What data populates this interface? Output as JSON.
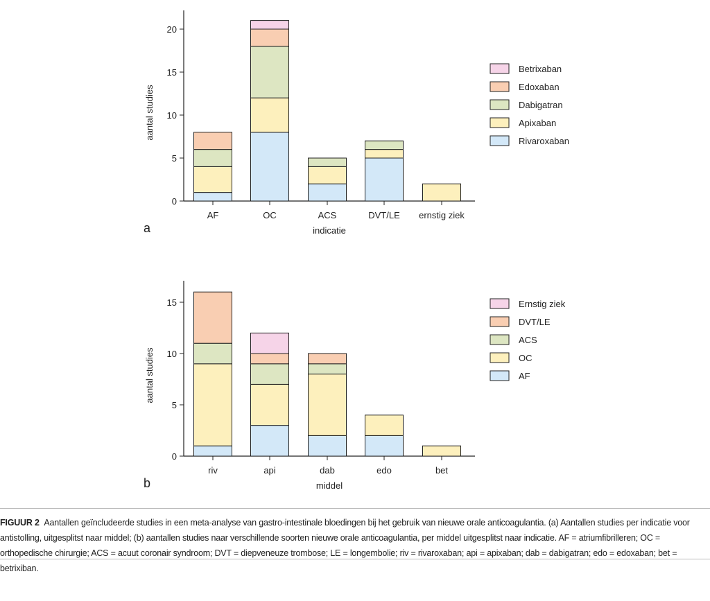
{
  "chart_data": [
    {
      "type": "bar",
      "stacked": true,
      "panel_label": "a",
      "categories": [
        "AF",
        "OC",
        "ACS",
        "DVT/LE",
        "ernstig ziek"
      ],
      "series": [
        {
          "name": "Rivaroxaban",
          "color": "#d3e8f8",
          "values": [
            1,
            8,
            2,
            5,
            0
          ]
        },
        {
          "name": "Apixaban",
          "color": "#fdf0bd",
          "values": [
            3,
            4,
            2,
            1,
            2
          ]
        },
        {
          "name": "Dabigatran",
          "color": "#dde6c2",
          "values": [
            2,
            6,
            1,
            1,
            0
          ]
        },
        {
          "name": "Edoxaban",
          "color": "#f9ceb2",
          "values": [
            2,
            2,
            0,
            0,
            0
          ]
        },
        {
          "name": "Betrixaban",
          "color": "#f6d4e8",
          "values": [
            0,
            1,
            0,
            0,
            0
          ]
        }
      ],
      "xlabel": "indicatie",
      "ylabel": "aantal studies",
      "ylim": [
        0,
        22
      ],
      "yticks": [
        0,
        5,
        10,
        15,
        20
      ],
      "legend": "right"
    },
    {
      "type": "bar",
      "stacked": true,
      "panel_label": "b",
      "categories": [
        "riv",
        "api",
        "dab",
        "edo",
        "bet"
      ],
      "series": [
        {
          "name": "AF",
          "color": "#d3e8f8",
          "values": [
            1,
            3,
            2,
            2,
            0
          ]
        },
        {
          "name": "OC",
          "color": "#fdf0bd",
          "values": [
            8,
            4,
            6,
            2,
            1
          ]
        },
        {
          "name": "ACS",
          "color": "#dde6c2",
          "values": [
            2,
            2,
            1,
            0,
            0
          ]
        },
        {
          "name": "DVT/LE",
          "color": "#f9ceb2",
          "values": [
            5,
            1,
            1,
            0,
            0
          ]
        },
        {
          "name": "Ernstig ziek",
          "color": "#f6d4e8",
          "values": [
            0,
            2,
            0,
            0,
            0
          ]
        }
      ],
      "xlabel": "middel",
      "ylabel": "aantal studies",
      "ylim": [
        0,
        17
      ],
      "yticks": [
        0,
        5,
        10,
        15
      ],
      "legend": "right"
    }
  ],
  "caption": {
    "label": "FIGUUR 2",
    "text": "Aantallen geïncludeerde studies in een meta-analyse van gastro-intestinale bloedingen bij het gebruik van nieuwe orale anticoagulantia. (a) Aantallen studies per indicatie voor antistolling, uitgesplitst naar middel; (b) aantallen studies naar verschillende soorten nieuwe orale anticoagulantia, per middel uitgesplitst naar indicatie. AF = atriumfibrilleren; OC = orthopedische chirurgie; ACS = acuut coronair syndroom; DVT = diepveneuze trombose; LE = longembolie; riv = rivaroxaban; api = apixaban; dab = dabigatran; edo = edoxaban; bet = betrixiban."
  }
}
